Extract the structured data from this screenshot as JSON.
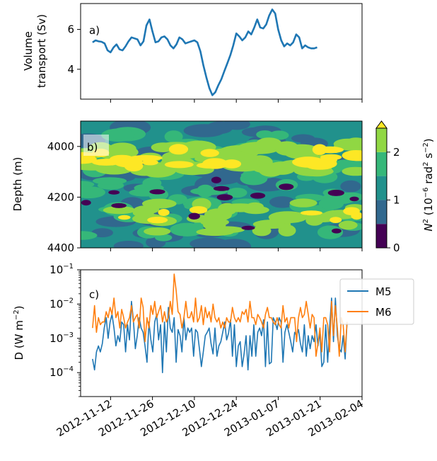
{
  "dates": [
    "2012-11-12",
    "2012-11-26",
    "2012-12-10",
    "2012-12-24",
    "2013-01-07",
    "2013-01-21",
    "2013-02-04"
  ],
  "chart_data": [
    {
      "type": "line",
      "panel_label": "a)",
      "ylabel_lines": [
        "Volume",
        "transport (Sv)"
      ],
      "yticks": [
        4,
        6
      ],
      "ylim": [
        2.5,
        7.3
      ],
      "xlim": [
        "2012-11-02",
        "2013-02-04"
      ],
      "grid": false,
      "series": [
        {
          "color": "#1f77b4",
          "points": [
            [
              "2012-11-06",
              5.35
            ],
            [
              "2012-11-07",
              5.45
            ],
            [
              "2012-11-08",
              5.4
            ],
            [
              "2012-11-09",
              5.38
            ],
            [
              "2012-11-10",
              5.3
            ],
            [
              "2012-11-11",
              4.95
            ],
            [
              "2012-11-12",
              4.85
            ],
            [
              "2012-11-13",
              5.1
            ],
            [
              "2012-11-14",
              5.25
            ],
            [
              "2012-11-15",
              5.0
            ],
            [
              "2012-11-16",
              4.95
            ],
            [
              "2012-11-17",
              5.15
            ],
            [
              "2012-11-18",
              5.4
            ],
            [
              "2012-11-19",
              5.6
            ],
            [
              "2012-11-20",
              5.55
            ],
            [
              "2012-11-21",
              5.5
            ],
            [
              "2012-11-22",
              5.2
            ],
            [
              "2012-11-23",
              5.4
            ],
            [
              "2012-11-24",
              6.2
            ],
            [
              "2012-11-25",
              6.5
            ],
            [
              "2012-11-26",
              5.9
            ],
            [
              "2012-11-27",
              5.35
            ],
            [
              "2012-11-28",
              5.4
            ],
            [
              "2012-11-29",
              5.6
            ],
            [
              "2012-11-30",
              5.65
            ],
            [
              "2012-12-01",
              5.5
            ],
            [
              "2012-12-02",
              5.2
            ],
            [
              "2012-12-03",
              5.05
            ],
            [
              "2012-12-04",
              5.25
            ],
            [
              "2012-12-05",
              5.6
            ],
            [
              "2012-12-06",
              5.5
            ],
            [
              "2012-12-07",
              5.3
            ],
            [
              "2012-12-08",
              5.35
            ],
            [
              "2012-12-09",
              5.4
            ],
            [
              "2012-12-10",
              5.45
            ],
            [
              "2012-12-11",
              5.35
            ],
            [
              "2012-12-12",
              4.9
            ],
            [
              "2012-12-13",
              4.2
            ],
            [
              "2012-12-14",
              3.6
            ],
            [
              "2012-12-15",
              3.05
            ],
            [
              "2012-12-16",
              2.7
            ],
            [
              "2012-12-17",
              2.85
            ],
            [
              "2012-12-18",
              3.2
            ],
            [
              "2012-12-19",
              3.5
            ],
            [
              "2012-12-20",
              3.9
            ],
            [
              "2012-12-21",
              4.3
            ],
            [
              "2012-12-22",
              4.7
            ],
            [
              "2012-12-23",
              5.2
            ],
            [
              "2012-12-24",
              5.8
            ],
            [
              "2012-12-25",
              5.65
            ],
            [
              "2012-12-26",
              5.45
            ],
            [
              "2012-12-27",
              5.6
            ],
            [
              "2012-12-28",
              5.9
            ],
            [
              "2012-12-29",
              5.75
            ],
            [
              "2012-12-30",
              6.1
            ],
            [
              "2012-12-31",
              6.5
            ],
            [
              "2013-01-01",
              6.1
            ],
            [
              "2013-01-02",
              6.05
            ],
            [
              "2013-01-03",
              6.25
            ],
            [
              "2013-01-04",
              6.7
            ],
            [
              "2013-01-05",
              7.0
            ],
            [
              "2013-01-06",
              6.8
            ],
            [
              "2013-01-07",
              6.0
            ],
            [
              "2013-01-08",
              5.45
            ],
            [
              "2013-01-09",
              5.15
            ],
            [
              "2013-01-10",
              5.3
            ],
            [
              "2013-01-11",
              5.2
            ],
            [
              "2013-01-12",
              5.35
            ],
            [
              "2013-01-13",
              5.75
            ],
            [
              "2013-01-14",
              5.6
            ],
            [
              "2013-01-15",
              5.05
            ],
            [
              "2013-01-16",
              5.2
            ],
            [
              "2013-01-17",
              5.1
            ],
            [
              "2013-01-18",
              5.05
            ],
            [
              "2013-01-19",
              5.05
            ],
            [
              "2013-01-20",
              5.1
            ]
          ]
        }
      ]
    },
    {
      "type": "heatmap",
      "panel_label": "b)",
      "ylabel": "Depth (m)",
      "yticks": [
        4000,
        4200,
        4400
      ],
      "ylim": [
        4400,
        3900
      ],
      "y_inverted": true,
      "xlim": [
        "2012-11-02",
        "2013-02-04"
      ],
      "colorbar": {
        "label_parts": [
          "N",
          "2",
          " (10",
          "−6",
          " rad",
          "2",
          " s",
          "−2",
          ")"
        ],
        "ticks": [
          0,
          1,
          2
        ],
        "levels": [
          0,
          0.5,
          1.0,
          1.5,
          2.0,
          2.5
        ],
        "colors": [
          "#440154",
          "#31688e",
          "#21918c",
          "#35b779",
          "#90d743",
          "#fde725"
        ],
        "extend_max": true
      }
    },
    {
      "type": "line",
      "panel_label": "c)",
      "ylabel_parts": [
        "D (W m",
        "−2",
        ")"
      ],
      "yscale": "log",
      "yticks": [
        0.0001,
        0.001,
        0.01,
        0.1
      ],
      "ytick_labels": [
        [
          "10",
          "−4"
        ],
        [
          "10",
          "−3"
        ],
        [
          "10",
          "−2"
        ],
        [
          "10",
          "−1"
        ]
      ],
      "ylim": [
        2e-05,
        0.1
      ],
      "xlim": [
        "2012-11-02",
        "2013-02-04"
      ],
      "legend_position": "top-right",
      "series": [
        {
          "name": "M5",
          "color": "#1f77b4",
          "values": [
            0.00025,
            0.00012,
            0.0004,
            0.0006,
            0.0004,
            0.0007,
            0.002,
            0.004,
            0.001,
            0.003,
            0.005,
            0.002,
            0.0006,
            0.0012,
            0.0008,
            0.003,
            0.0025,
            0.0004,
            0.0025,
            0.0009,
            0.012,
            0.0035,
            0.0005,
            0.0012,
            0.004,
            0.002,
            0.0015,
            0.0006,
            0.0002,
            0.003,
            0.0009,
            0.0004,
            0.003,
            0.005,
            0.0009,
            0.0025,
            0.0001,
            0.003,
            0.0004,
            0.008,
            0.002,
            0.0015,
            0.004,
            0.0002,
            0.0018,
            0.0012,
            0.0004,
            0.004,
            0.0009,
            0.002,
            0.0015,
            0.002,
            0.0003,
            0.0018,
            0.0015,
            0.0005,
            0.00015,
            0.0004,
            0.0012,
            0.0015,
            0.002,
            0.0007,
            0.00035,
            0.002,
            0.0003,
            0.0006,
            0.0008,
            0.0015,
            0.003,
            0.0009,
            0.0014,
            0.0035,
            0.0003,
            0.0025,
            0.00015,
            0.0006,
            0.0008,
            0.00015,
            0.00035,
            0.0012,
            0.00012,
            0.0012,
            0.0003,
            0.0025,
            0.0003,
            0.0015,
            0.002,
            0.0012,
            0.0035,
            0.00015,
            0.003,
            0.00018,
            0.0002,
            0.004,
            0.003,
            0.0018,
            0.004,
            0.003,
            0.0002,
            0.0015,
            0.0025,
            0.0015,
            0.0008,
            0.0004,
            0.0015,
            0.0012,
            0.0018,
            0.0007,
            0.0004,
            0.0025,
            0.0003,
            0.0012,
            0.0005,
            0.0012,
            0.0008,
            0.0025,
            0.0006,
            0.0015,
            0.00015,
            0.0002,
            0.0025,
            0.0002,
            0.002,
            0.015,
            0.0008,
            0.015,
            0.0012,
            0.0005,
            0.0004,
            0.0012,
            0.00025,
            0.003
          ]
        },
        {
          "name": "M6",
          "color": "#ff7f0e",
          "values": [
            0.002,
            0.009,
            0.0015,
            0.004,
            0.0025,
            0.003,
            0.003,
            0.006,
            0.004,
            0.008,
            0.005,
            0.015,
            0.004,
            0.006,
            0.002,
            0.007,
            0.004,
            0.002,
            0.003,
            0.004,
            0.009,
            0.003,
            0.004,
            0.005,
            0.002,
            0.015,
            0.008,
            0.0008,
            0.004,
            0.002,
            0.009,
            0.005,
            0.012,
            0.004,
            0.006,
            0.009,
            0.003,
            0.006,
            0.003,
            0.004,
            0.012,
            0.005,
            0.075,
            0.025,
            0.006,
            0.005,
            0.002,
            0.004,
            0.012,
            0.004,
            0.004,
            0.006,
            0.003,
            0.015,
            0.003,
            0.004,
            0.009,
            0.0025,
            0.008,
            0.004,
            0.006,
            0.003,
            0.01,
            0.004,
            0.003,
            0.004,
            0.002,
            0.003,
            0.002,
            0.004,
            0.003,
            0.003,
            0.008,
            0.004,
            0.003,
            0.004,
            0.003,
            0.006,
            0.005,
            0.007,
            0.003,
            0.012,
            0.004,
            0.004,
            0.0025,
            0.005,
            0.004,
            0.003,
            0.002,
            0.005,
            0.008,
            0.004,
            0.004,
            0.003,
            0.0025,
            0.004,
            0.0025,
            0.002,
            0.009,
            0.003,
            0.004,
            0.002,
            0.004,
            0.004,
            0.004,
            0.0008,
            0.004,
            0.008,
            0.004,
            0.005,
            0.012,
            0.005,
            0.002,
            0.005,
            0.004,
            0.0003,
            0.0007,
            0.002,
            0.0004,
            0.004,
            0.004,
            0.0025,
            0.0004,
            0.012,
            0.0012,
            0.009,
            0.002,
            0.0003,
            0.004,
            0.0025,
            0.0004,
            0.003
          ]
        }
      ]
    }
  ]
}
